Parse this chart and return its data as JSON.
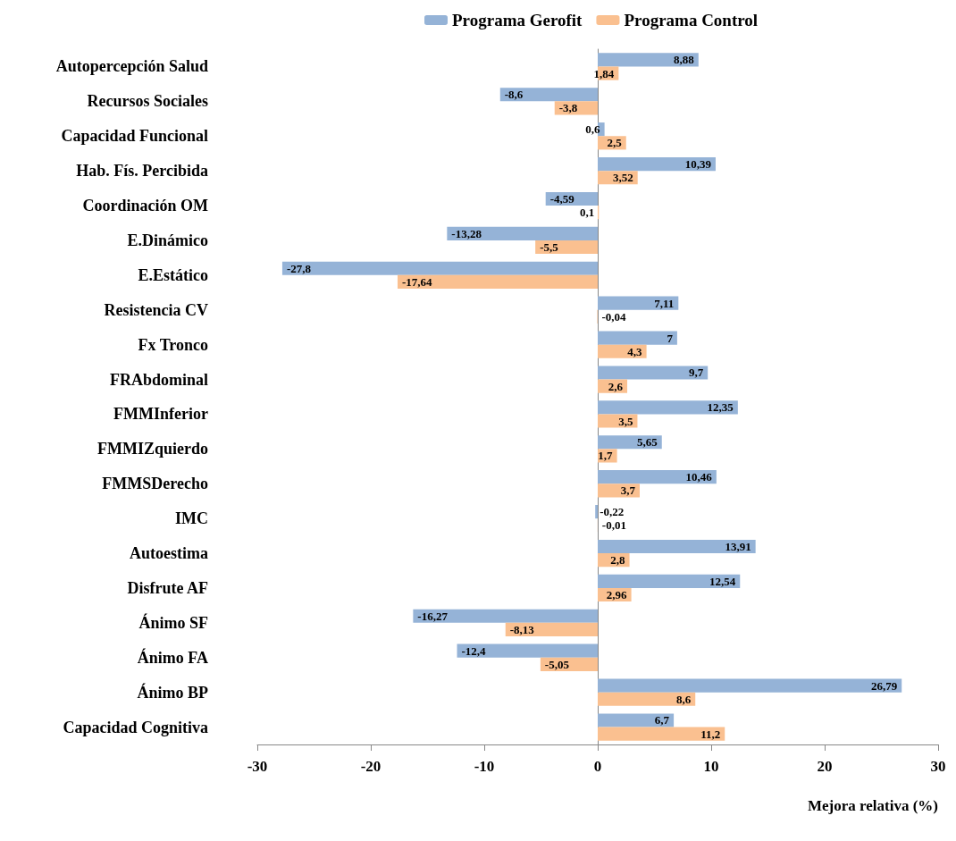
{
  "chart_data": {
    "type": "bar",
    "orientation": "horizontal",
    "xlabel": "Mejora relativa (%)",
    "categories": [
      "Autopercepción Salud",
      "Recursos Sociales",
      "Capacidad Funcional",
      "Hab. Fís. Percibida",
      "Coordinación OM",
      "E.Dinámico",
      "E.Estático",
      "Resistencia CV",
      "Fx Tronco",
      "FRAbdominal",
      "FMMInferior",
      "FMMIZquierdo",
      "FMMSDerecho",
      "IMC",
      "Autoestima",
      "Disfrute AF",
      "Ánimo SF",
      "Ánimo FA",
      "Ánimo BP",
      "Capacidad Cognitiva"
    ],
    "series": [
      {
        "name": "Programa Gerofit",
        "color": "#95b3d7",
        "values": [
          8.88,
          -8.6,
          0.6,
          10.39,
          -4.59,
          -13.28,
          -27.8,
          7.11,
          7,
          9.7,
          12.35,
          5.65,
          10.46,
          -0.22,
          13.91,
          12.54,
          -16.27,
          -12.4,
          26.79,
          6.7
        ],
        "value_labels": [
          "8,88",
          "-8,6",
          "0,6",
          "10,39",
          "-4,59",
          "-13,28",
          "-27,8",
          "7,11",
          "7",
          "9,7",
          "12,35",
          "5,65",
          "10,46",
          "-0,22",
          "13,91",
          "12,54",
          "-16,27",
          "-12,4",
          "26,79",
          "6,7"
        ]
      },
      {
        "name": "Programa Control",
        "color": "#fac090",
        "values": [
          1.84,
          -3.8,
          2.5,
          3.52,
          0.1,
          -5.5,
          -17.64,
          -0.04,
          4.3,
          2.6,
          3.5,
          1.7,
          3.7,
          -0.01,
          2.8,
          2.96,
          -8.13,
          -5.05,
          8.6,
          11.2
        ],
        "value_labels": [
          "1,84",
          "-3,8",
          "2,5",
          "3,52",
          "0,1",
          "-5,5",
          "-17,64",
          "-0,04",
          "4,3",
          "2,6",
          "3,5",
          "1,7",
          "3,7",
          "-0,01",
          "2,8",
          "2,96",
          "-8,13",
          "-5,05",
          "8,6",
          "11,2"
        ]
      }
    ],
    "xlim": [
      -30,
      30
    ],
    "xticks": [
      -30,
      -20,
      -10,
      0,
      10,
      20,
      30
    ],
    "legend": "top"
  }
}
